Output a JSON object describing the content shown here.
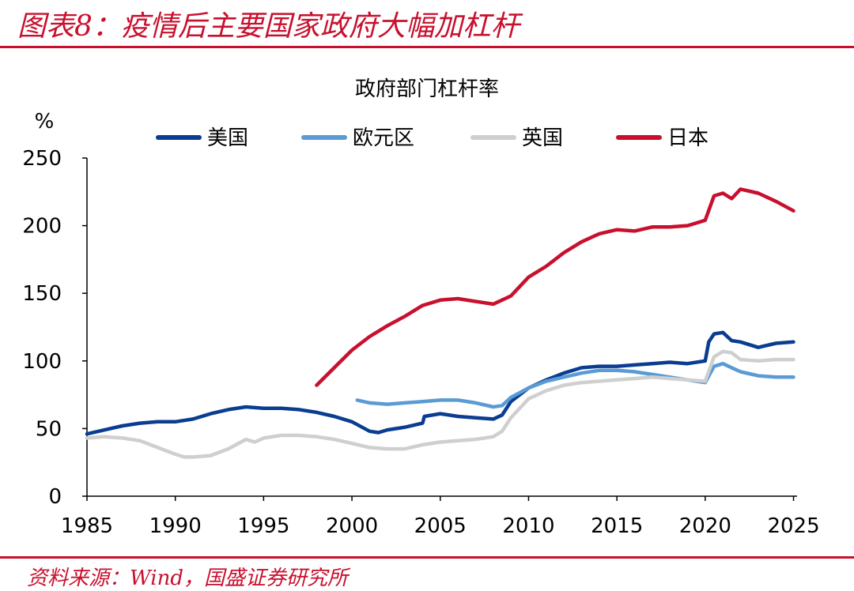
{
  "figure_title": "图表8：疫情后主要国家政府大幅加杠杆",
  "source_note": "资料来源：Wind，国盛证券研究所",
  "colors": {
    "accent": "#c8102e"
  },
  "chart_data": {
    "type": "line",
    "title": "政府部门杠杆率",
    "ylabel": "%",
    "xlabel": "",
    "xlim": [
      1985,
      2025.2
    ],
    "ylim": [
      0,
      250
    ],
    "x_ticks": [
      1985,
      1990,
      1995,
      2000,
      2005,
      2010,
      2015,
      2020,
      2025
    ],
    "y_ticks": [
      0,
      50,
      100,
      150,
      200,
      250
    ],
    "grid": false,
    "legend": "top",
    "series": [
      {
        "name": "美国",
        "color": "#0a3d91",
        "x": [
          1985,
          1986,
          1987,
          1988,
          1989,
          1990,
          1991,
          1992,
          1993,
          1994,
          1995,
          1996,
          1997,
          1998,
          1999,
          2000,
          2001,
          2001.5,
          2002,
          2003,
          2004,
          2004.1,
          2005,
          2006,
          2007,
          2008,
          2008.5,
          2009,
          2010,
          2011,
          2012,
          2013,
          2014,
          2015,
          2016,
          2017,
          2018,
          2019,
          2020,
          2020.2,
          2020.5,
          2021,
          2021.5,
          2022,
          2023,
          2024,
          2025
        ],
        "values": [
          46,
          49,
          52,
          54,
          55,
          55,
          57,
          61,
          64,
          66,
          65,
          65,
          64,
          62,
          59,
          55,
          48,
          47,
          49,
          51,
          54,
          59,
          61,
          59,
          58,
          57,
          60,
          70,
          80,
          86,
          91,
          95,
          96,
          96,
          97,
          98,
          99,
          98,
          100,
          114,
          120,
          121,
          115,
          114,
          110,
          113,
          114
        ]
      },
      {
        "name": "欧元区",
        "color": "#5b9bd5",
        "x": [
          2000.3,
          2001,
          2002,
          2003,
          2004,
          2005,
          2006,
          2007,
          2008,
          2008.5,
          2009,
          2010,
          2011,
          2012,
          2013,
          2014,
          2015,
          2016,
          2017,
          2018,
          2019,
          2020,
          2020.5,
          2021,
          2021.5,
          2022,
          2023,
          2024,
          2025
        ],
        "values": [
          71,
          69,
          68,
          69,
          70,
          71,
          71,
          69,
          66,
          67,
          73,
          80,
          85,
          88,
          91,
          93,
          93,
          92,
          90,
          88,
          86,
          84,
          96,
          98,
          95,
          92,
          89,
          88,
          88
        ]
      },
      {
        "name": "英国",
        "color": "#cfcfcf",
        "x": [
          1985,
          1986,
          1987,
          1988,
          1989,
          1990,
          1990.5,
          1991,
          1992,
          1993,
          1994,
          1994.5,
          1995,
          1996,
          1997,
          1998,
          1999,
          2000,
          2001,
          2002,
          2003,
          2004,
          2005,
          2006,
          2007,
          2008,
          2008.5,
          2009,
          2010,
          2011,
          2012,
          2013,
          2014,
          2015,
          2016,
          2017,
          2018,
          2019,
          2020,
          2020.5,
          2021,
          2021.5,
          2022,
          2023,
          2024,
          2025
        ],
        "values": [
          43,
          44,
          43,
          41,
          36,
          31,
          29,
          29,
          30,
          35,
          42,
          40,
          43,
          45,
          45,
          44,
          42,
          39,
          36,
          35,
          35,
          38,
          40,
          41,
          42,
          44,
          48,
          58,
          72,
          78,
          82,
          84,
          85,
          86,
          87,
          88,
          87,
          86,
          85,
          103,
          107,
          106,
          101,
          100,
          101,
          101
        ]
      },
      {
        "name": "日本",
        "color": "#c8102e",
        "x": [
          1998,
          1999,
          2000,
          2001,
          2002,
          2003,
          2004,
          2005,
          2006,
          2007,
          2008,
          2009,
          2010,
          2011,
          2012,
          2013,
          2014,
          2015,
          2016,
          2017,
          2018,
          2019,
          2020,
          2020.5,
          2021,
          2021.5,
          2022,
          2023,
          2024,
          2025
        ],
        "values": [
          82,
          95,
          108,
          118,
          126,
          133,
          141,
          145,
          146,
          144,
          142,
          148,
          162,
          170,
          180,
          188,
          194,
          197,
          196,
          199,
          199,
          200,
          204,
          222,
          224,
          220,
          227,
          224,
          218,
          211
        ]
      }
    ]
  }
}
